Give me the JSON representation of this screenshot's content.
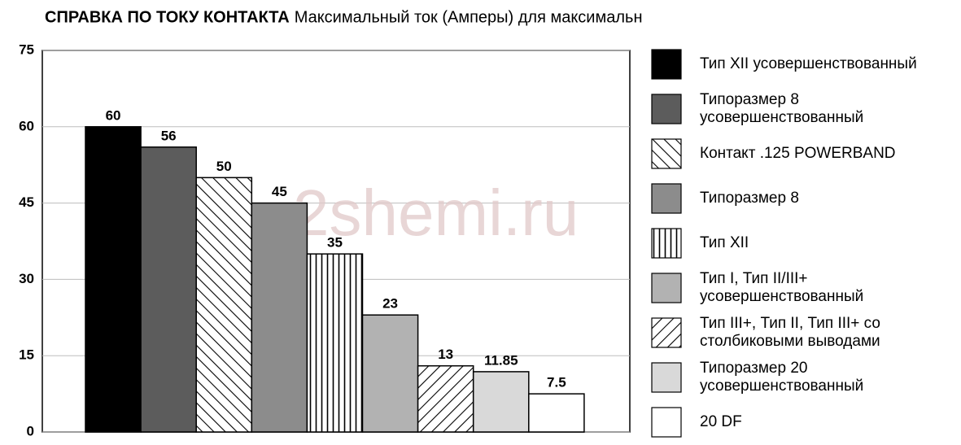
{
  "chart_data": {
    "type": "bar",
    "title": "СПРАВКА ПО ТОКУ КОНТАКТА",
    "subtitle": "Максимальный ток (Амперы) для максимального сечения провода",
    "watermark": "2shemi.ru",
    "ylim": [
      0,
      75
    ],
    "yticks": [
      0,
      15,
      30,
      45,
      60,
      75
    ],
    "grid": true,
    "series": [
      {
        "name": "Тип XII усовершенствованный",
        "color": "#000000",
        "pattern": "solid",
        "values": [
          60
        ]
      },
      {
        "name": "Типоразмер 8 усовершенствованный",
        "color": "#5c5c5c",
        "pattern": "solid",
        "values": [
          56
        ]
      },
      {
        "name": "Контакт .125 POWERBAND",
        "color": "#ffffff",
        "pattern": "backslash",
        "values": [
          50
        ]
      },
      {
        "name": "Типоразмер 8",
        "color": "#8c8c8c",
        "pattern": "solid",
        "values": [
          45
        ]
      },
      {
        "name": "Тип XII",
        "color": "#ffffff",
        "pattern": "vertical",
        "values": [
          35
        ]
      },
      {
        "name": "Тип I, Тип II/III+ усовершенствованный",
        "color": "#b2b2b2",
        "pattern": "solid",
        "values": [
          23
        ]
      },
      {
        "name": "Тип III+, Тип II, Тип III+ со столбиковыми выводами",
        "color": "#ffffff",
        "pattern": "slash",
        "values": [
          13
        ]
      },
      {
        "name": "Типоразмер 20 усовершенствованный",
        "color": "#d9d9d9",
        "pattern": "solid",
        "values": [
          11.85
        ]
      },
      {
        "name": "20 DF",
        "color": "#ffffff",
        "pattern": "solid",
        "values": [
          7.5
        ]
      }
    ]
  }
}
